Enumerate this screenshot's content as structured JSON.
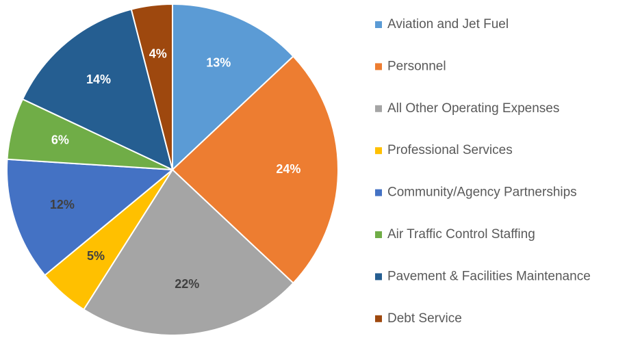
{
  "chart_data": {
    "type": "pie",
    "categories": [
      "Aviation and Jet Fuel",
      "Personnel",
      "All Other Operating Expenses",
      "Professional Services",
      "Community/Agency Partnerships",
      "Air Traffic Control Staffing",
      "Pavement & Facilities Maintenance",
      "Debt Service"
    ],
    "values": [
      13,
      24,
      22,
      5,
      12,
      6,
      14,
      4
    ],
    "value_labels": [
      "13%",
      "24%",
      "22%",
      "5%",
      "12%",
      "6%",
      "14%",
      "4%"
    ],
    "colors": [
      "#5b9bd5",
      "#ed7d31",
      "#a5a5a5",
      "#ffc000",
      "#4472c4",
      "#70ad47",
      "#255e91",
      "#9e480e"
    ],
    "label_colors": [
      "#ffffff",
      "#ffffff",
      "#404040",
      "#404040",
      "#404040",
      "#ffffff",
      "#ffffff",
      "#ffffff"
    ],
    "legend": "right"
  }
}
